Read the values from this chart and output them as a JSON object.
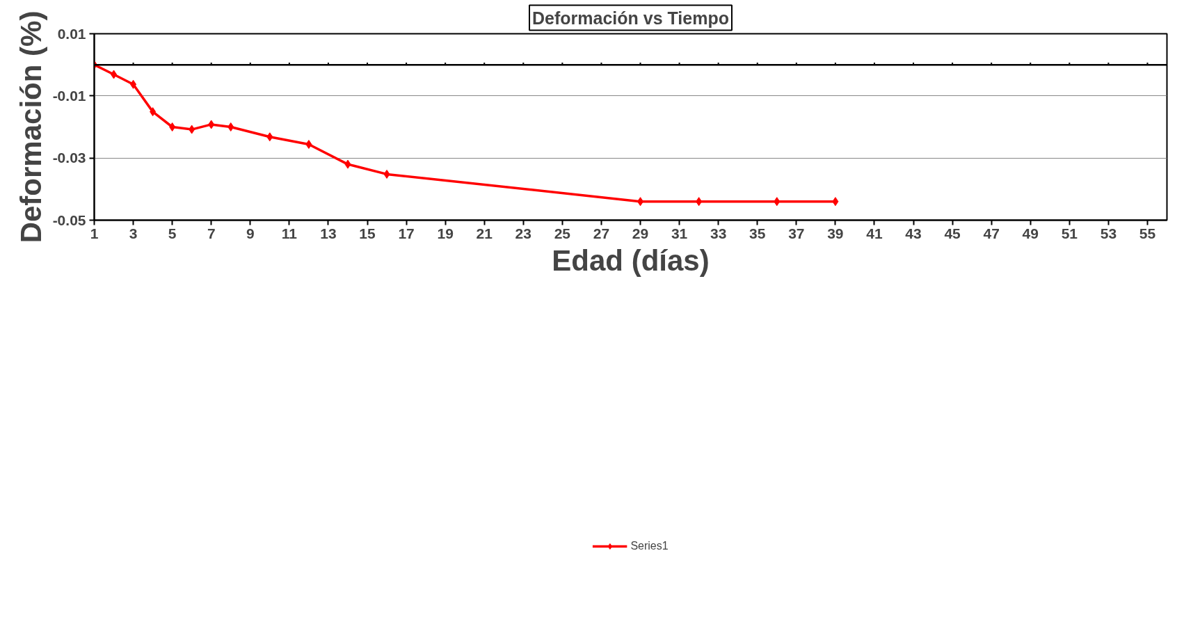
{
  "chart_data": {
    "type": "line",
    "title": "Deformación vs Tiempo",
    "xlabel": "Edad (días)",
    "ylabel": "Deformación (%)",
    "x": [
      1,
      2,
      3,
      4,
      5,
      6,
      7,
      8,
      10,
      12,
      14,
      16,
      29,
      32,
      36,
      39
    ],
    "series": [
      {
        "name": "Series1",
        "color": "#ff0000",
        "values": [
          0,
          -0.0031,
          -0.0063,
          -0.0151,
          -0.02,
          -0.0208,
          -0.0192,
          -0.02,
          -0.0232,
          -0.0256,
          -0.032,
          -0.0352,
          -0.044,
          -0.044,
          -0.044,
          -0.044
        ]
      }
    ],
    "xlim": [
      1,
      56
    ],
    "xticks": [
      1,
      3,
      5,
      7,
      9,
      11,
      13,
      15,
      17,
      19,
      21,
      23,
      25,
      27,
      29,
      31,
      33,
      35,
      37,
      39,
      41,
      43,
      45,
      47,
      49,
      51,
      53,
      55
    ],
    "ylim": [
      -0.05,
      0.01
    ],
    "yticks": [
      -0.05,
      -0.03,
      -0.01,
      0.01
    ],
    "ref_lines": [
      {
        "axis": "y",
        "value": 0,
        "label": null,
        "color": "#000000"
      }
    ],
    "grid": "y",
    "legend": "bottom",
    "marker": "diamond",
    "line_style": "solid"
  }
}
